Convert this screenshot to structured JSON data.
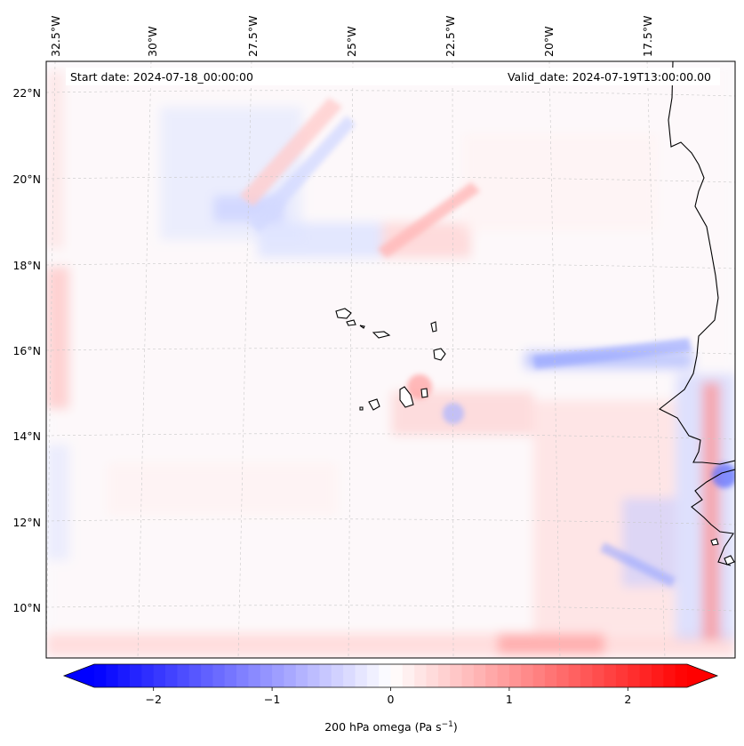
{
  "header": {
    "start_date": "Start date: 2024-07-18_00:00:00",
    "valid_date": "Valid_date: 2024-07-19T13:00:00.00"
  },
  "map": {
    "lon_labels": [
      "32.5°W",
      "30°W",
      "27.5°W",
      "25°W",
      "22.5°W",
      "20°W",
      "17.5°W"
    ],
    "lat_labels": [
      "22°N",
      "20°N",
      "18°N",
      "16°N",
      "14°N",
      "12°N",
      "10°N"
    ],
    "field": "200 hPa omega",
    "extent": {
      "lon_min": -33.0,
      "lon_max": -15.8,
      "lat_min": 8.9,
      "lat_max": 22.7
    }
  },
  "colorbar": {
    "label_main": "200 hPa omega (Pa s",
    "label_exp": "−1",
    "label_close": ")",
    "ticks": [
      "−2",
      "−1",
      "0",
      "1",
      "2"
    ],
    "tick_values": [
      -2,
      -1,
      0,
      1,
      2
    ],
    "vmin": -2.5,
    "vmax": 2.5,
    "colormap": "bwr",
    "low_color": "#0000ff",
    "mid_color": "#ffffff",
    "high_color": "#ff0000"
  }
}
